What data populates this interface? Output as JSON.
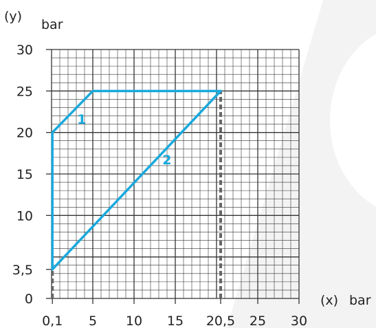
{
  "chart_data": {
    "type": "line",
    "title": "",
    "xlabel": "(x)",
    "xunit": "bar",
    "ylabel": "(y)",
    "yunit": "bar",
    "xlim": [
      0,
      30
    ],
    "ylim": [
      0,
      30
    ],
    "grid": true,
    "x_ticks": [
      {
        "value": 0.1,
        "label": "0,1"
      },
      {
        "value": 5,
        "label": "5"
      },
      {
        "value": 10,
        "label": "10"
      },
      {
        "value": 15,
        "label": "15"
      },
      {
        "value": 20.5,
        "label": "20,5"
      },
      {
        "value": 25,
        "label": "25"
      },
      {
        "value": 30,
        "label": "30"
      }
    ],
    "y_ticks": [
      {
        "value": 0,
        "label": "0"
      },
      {
        "value": 3.5,
        "label": "3,5"
      },
      {
        "value": 10,
        "label": "10"
      },
      {
        "value": 15,
        "label": "15"
      },
      {
        "value": 20,
        "label": "20"
      },
      {
        "value": 25,
        "label": "25"
      },
      {
        "value": 30,
        "label": "30"
      }
    ],
    "series": [
      {
        "label": "1",
        "points": [
          [
            0.1,
            3.5
          ],
          [
            0.1,
            20
          ],
          [
            5,
            25
          ],
          [
            20.5,
            25
          ]
        ]
      },
      {
        "label": "2",
        "points": [
          [
            0.1,
            3.5
          ],
          [
            20.5,
            25
          ]
        ]
      }
    ],
    "reference_lines": [
      {
        "axis": "x",
        "value": 20.5,
        "from": 0,
        "to": 25,
        "style": "dashed"
      },
      {
        "axis": "x",
        "value": 0.1,
        "from": 0,
        "to": 3.5,
        "style": "dashed"
      }
    ],
    "colors": {
      "series": "#19a9dc",
      "grid": "#333333",
      "reference": "#666666",
      "background_shape": "#f3f3f3"
    }
  }
}
